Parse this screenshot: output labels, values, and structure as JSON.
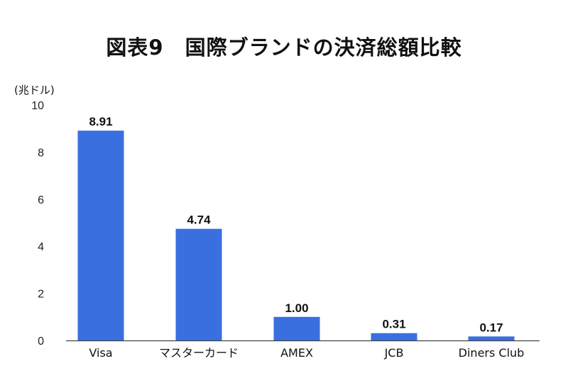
{
  "chart_data": {
    "type": "bar",
    "title": "図表9　国際ブランドの決済総額比較",
    "unit_label": "(兆ドル)",
    "categories": [
      "Visa",
      "マスターカード",
      "AMEX",
      "JCB",
      "Diners Club"
    ],
    "values": [
      8.91,
      4.74,
      1.0,
      0.31,
      0.17
    ],
    "value_labels": [
      "8.91",
      "4.74",
      "1.00",
      "0.31",
      "0.17"
    ],
    "ylim": [
      0,
      10
    ],
    "yticks": [
      0,
      2,
      4,
      6,
      8,
      10
    ],
    "grid": false,
    "bar_color": "#3a6fe0",
    "axis_color": "#444444"
  }
}
